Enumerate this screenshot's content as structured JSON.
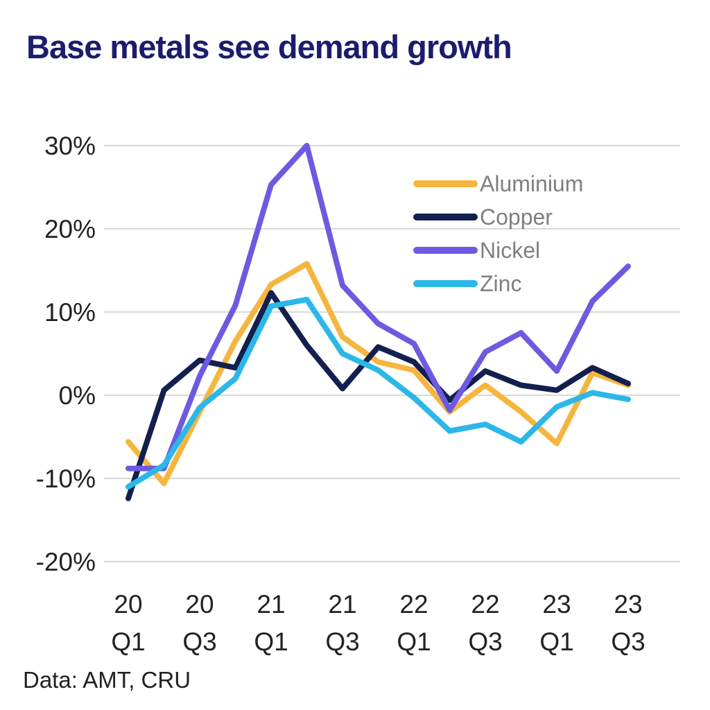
{
  "header": {
    "title": "Base metals see demand growth",
    "title_color": "#1c1c6e"
  },
  "footer": {
    "source_note": "Data: AMT, CRU"
  },
  "chart_data": {
    "type": "line",
    "title": "Base metals see demand growth",
    "xlabel": "",
    "ylabel": "",
    "unit": "%",
    "grid": "horizontal",
    "grid_color": "#d9d9d9",
    "axis_text_color": "#222222",
    "ylim": [
      -20,
      30
    ],
    "x_categories": [
      "20 Q1",
      "20 Q2",
      "20 Q3",
      "20 Q4",
      "21 Q1",
      "21 Q2",
      "21 Q3",
      "21 Q4",
      "22 Q1",
      "22 Q2",
      "22 Q3",
      "22 Q4",
      "23 Q1",
      "23 Q2",
      "23 Q3"
    ],
    "x_tick_labels": [
      {
        "top": "20",
        "bottom": "Q1",
        "index": 0
      },
      {
        "top": "20",
        "bottom": "Q3",
        "index": 2
      },
      {
        "top": "21",
        "bottom": "Q1",
        "index": 4
      },
      {
        "top": "21",
        "bottom": "Q3",
        "index": 6
      },
      {
        "top": "22",
        "bottom": "Q1",
        "index": 8
      },
      {
        "top": "22",
        "bottom": "Q3",
        "index": 10
      },
      {
        "top": "23",
        "bottom": "Q1",
        "index": 12
      },
      {
        "top": "23",
        "bottom": "Q3",
        "index": 14
      }
    ],
    "y_ticks": [
      {
        "label": "30%",
        "value": 30
      },
      {
        "label": "20%",
        "value": 20
      },
      {
        "label": "10%",
        "value": 10
      },
      {
        "label": "0%",
        "value": 0
      },
      {
        "label": "-10%",
        "value": -10
      },
      {
        "label": "-20%",
        "value": -20
      }
    ],
    "legend": {
      "position": "upper-right-inside",
      "text_color": "#7f7f7f"
    },
    "series": [
      {
        "name": "Aluminium",
        "color": "#F5B63F",
        "values": [
          -5.6,
          -10.6,
          -2.0,
          6.5,
          13.3,
          15.8,
          7.0,
          4.0,
          3.0,
          -2.0,
          1.2,
          -2.0,
          -5.8,
          2.7,
          1.2
        ]
      },
      {
        "name": "Copper",
        "color": "#131F4F",
        "values": [
          -12.4,
          0.6,
          4.2,
          3.3,
          12.3,
          6.0,
          0.8,
          5.8,
          4.0,
          -0.6,
          2.9,
          1.2,
          0.6,
          3.3,
          1.4
        ]
      },
      {
        "name": "Nickel",
        "color": "#6C5BE0",
        "values": [
          -8.8,
          -8.8,
          2.3,
          10.8,
          25.3,
          30.0,
          13.2,
          8.6,
          6.2,
          -1.8,
          5.2,
          7.5,
          2.9,
          11.3,
          15.5
        ]
      },
      {
        "name": "Zinc",
        "color": "#2BB7E8",
        "values": [
          -11.0,
          -8.4,
          -1.5,
          2.0,
          10.7,
          11.5,
          5.0,
          3.0,
          -0.3,
          -4.3,
          -3.5,
          -5.6,
          -1.4,
          0.3,
          -0.5
        ]
      }
    ],
    "source": "Data: AMT, CRU"
  }
}
